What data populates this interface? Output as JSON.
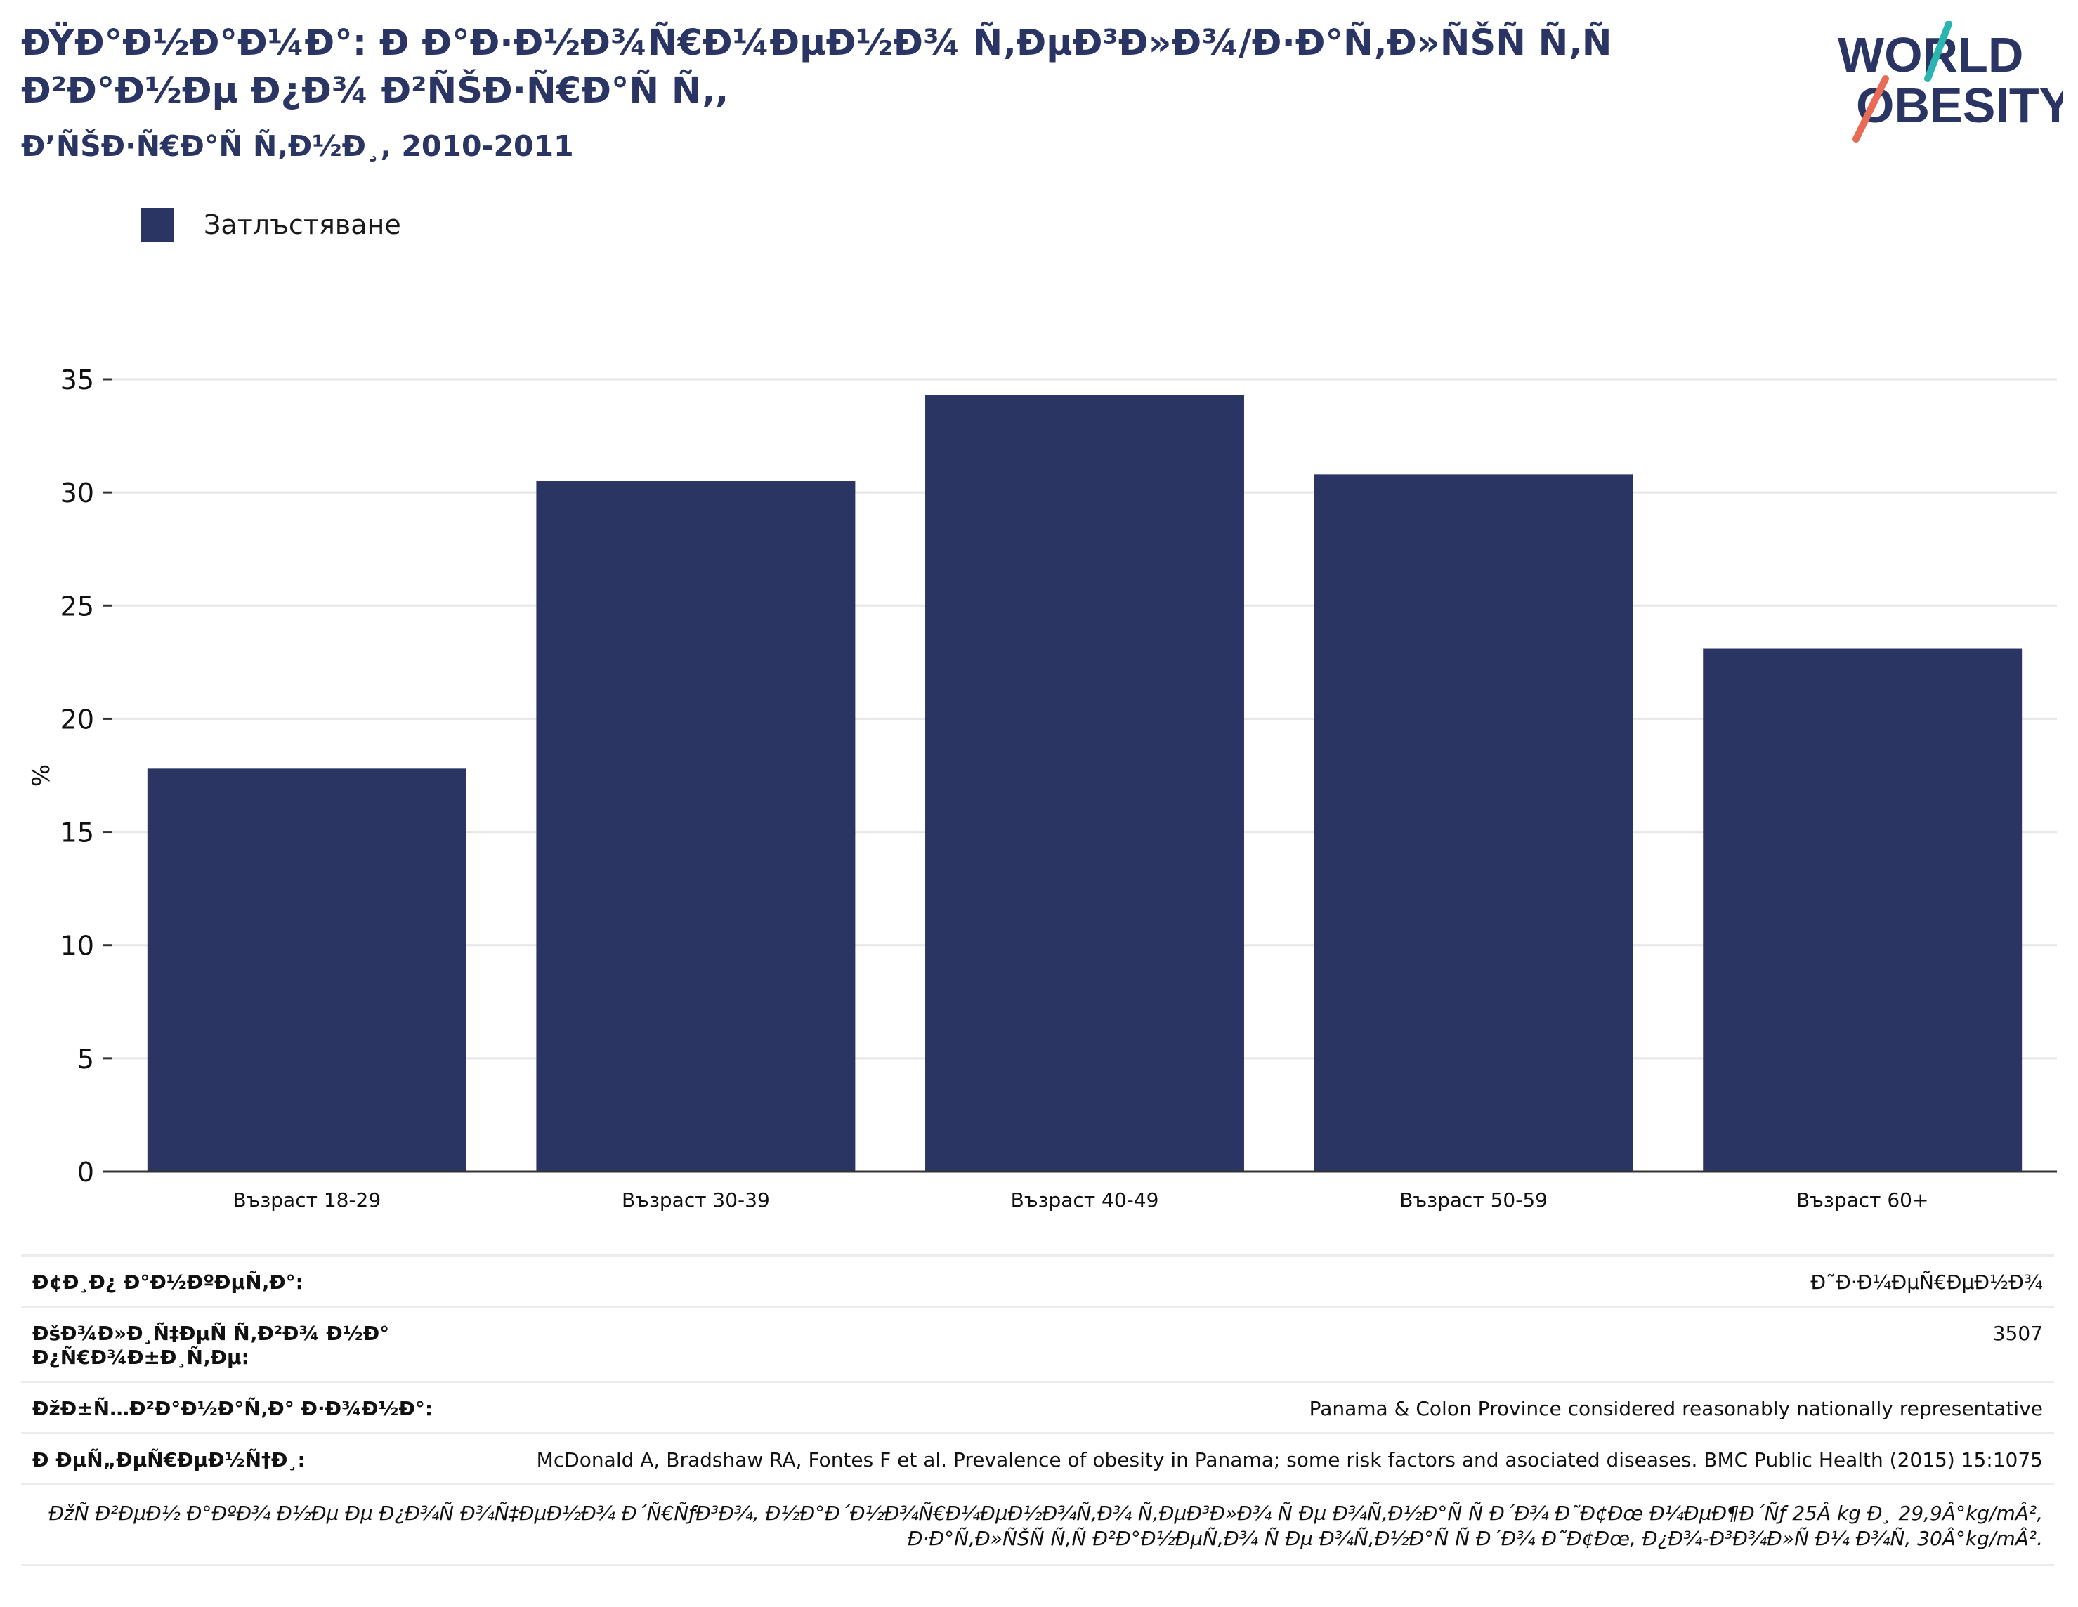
{
  "header": {
    "title": "ÐŸÐ°Ð½Ð°Ð¼Ð°: Ð Ð°Ð·Ð½Ð¾Ñ€Ð¼ÐµÐ½Ð¾ Ñ‚ÐµÐ³Ð»Ð¾/Ð·Ð°Ñ‚Ð»ÑŠÑ Ñ‚Ñ Ð²Ð°Ð½Ðµ Ð¿Ð¾ Ð²ÑŠÐ·Ñ€Ð°Ñ Ñ‚,",
    "subtitle": "Ð’ÑŠÐ·Ñ€Ð°Ñ Ñ‚Ð½Ð¸, 2010-2011",
    "logo_text_top": "WORLD",
    "logo_text_bottom": "OBESITY"
  },
  "colors": {
    "bar": "#2a3563",
    "logo_teal": "#2bb5b0",
    "logo_red": "#e86b57",
    "grid": "#e6e6e6"
  },
  "chart_data": {
    "type": "bar",
    "categories": [
      "Възраст 18-29",
      "Възраст 30-39",
      "Възраст 40-49",
      "Възраст 50-59",
      "Възраст 60+"
    ],
    "series": [
      {
        "name": "Затлъстяване",
        "values": [
          17.8,
          30.5,
          34.3,
          30.8,
          23.1
        ]
      }
    ],
    "ylabel": "%",
    "ylim": [
      0,
      35
    ],
    "yticks": [
      0,
      5,
      10,
      15,
      20,
      25,
      30,
      35
    ],
    "grid": true,
    "legend_position": "top-left"
  },
  "meta": {
    "rows": [
      {
        "key": "Ð¢Ð¸Ð¿ Ð°Ð½ÐºÐµÑ‚Ð°:",
        "value": "Ð˜Ð·Ð¼ÐµÑ€ÐµÐ½Ð¾"
      },
      {
        "key": "ÐšÐ¾Ð»Ð¸Ñ‡ÐµÑ Ñ‚Ð²Ð¾ Ð½Ð° Ð¿Ñ€Ð¾Ð±Ð¸Ñ‚Ðµ:",
        "value": "3507"
      },
      {
        "key": "ÐžÐ±Ñ…Ð²Ð°Ð½Ð°Ñ‚Ð° Ð·Ð¾Ð½Ð°:",
        "value": "Panama & Colon Province considered reasonably nationally representative"
      },
      {
        "key": "Ð ÐµÑ„ÐµÑ€ÐµÐ½Ñ†Ð¸:",
        "value": "McDonald A, Bradshaw RA, Fontes F et al. Prevalence of obesity in Panama; some risk factors and asociated diseases. BMC Public Health (2015) 15:1075"
      }
    ],
    "note": "ÐžÑ Ð²ÐµÐ½ Ð°ÐºÐ¾ Ð½Ðµ Ðµ Ð¿Ð¾Ñ Ð¾Ñ‡ÐµÐ½Ð¾ Ð´Ñ€ÑƒÐ³Ð¾, Ð½Ð°Ð´Ð½Ð¾Ñ€Ð¼ÐµÐ½Ð¾Ñ‚Ð¾ Ñ‚ÐµÐ³Ð»Ð¾ Ñ Ðµ Ð¾Ñ‚Ð½Ð°Ñ Ñ Ð´Ð¾ Ð˜Ð¢Ðœ Ð¼ÐµÐ¶Ð´Ñƒ 25Â kg Ð¸ 29,9Â°kg/mÂ², Ð·Ð°Ñ‚Ð»ÑŠÑ Ñ‚Ñ Ð²Ð°Ð½ÐµÑ‚Ð¾ Ñ Ðµ Ð¾Ñ‚Ð½Ð°Ñ Ñ Ð´Ð¾ Ð˜Ð¢Ðœ, Ð¿Ð¾-Ð³Ð¾Ð»Ñ Ð¼ Ð¾Ñ‚ 30Â°kg/mÂ²."
  }
}
